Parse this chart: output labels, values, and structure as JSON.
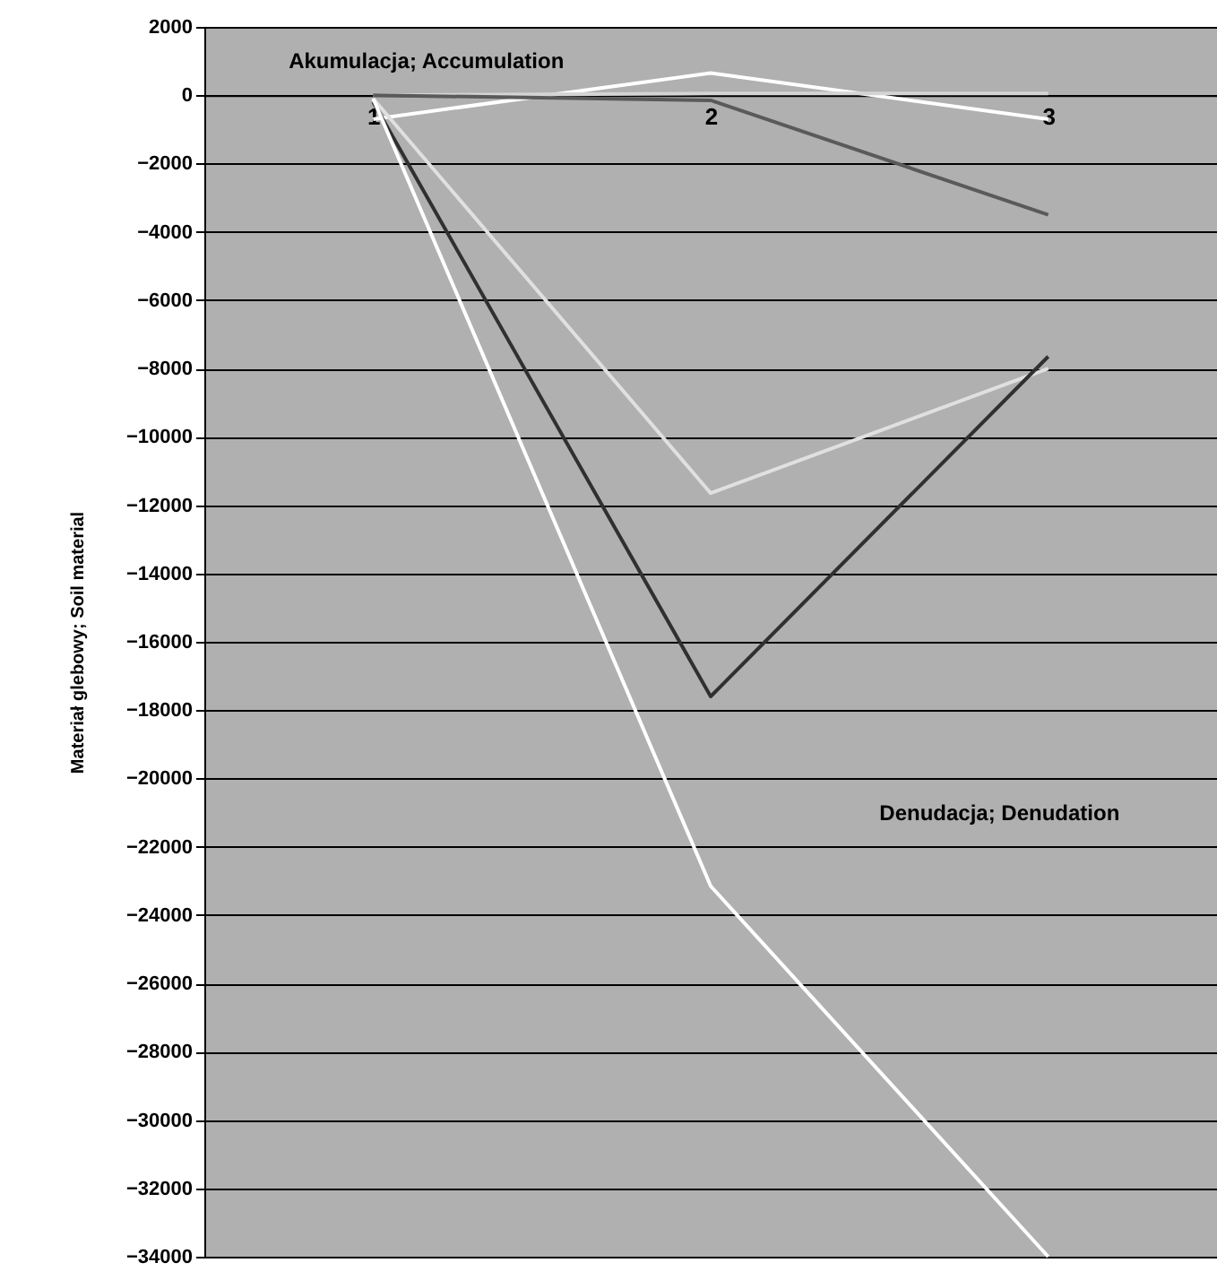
{
  "chart_data": {
    "type": "line",
    "categories": [
      "1",
      "2",
      "3"
    ],
    "ylabel": "Materiał glebowy; Soil material",
    "series": [
      {
        "color": "#ffffff",
        "values": [
          -700,
          650,
          -700
        ]
      },
      {
        "color": "#d4d4d4",
        "values": [
          0,
          50,
          50
        ]
      },
      {
        "color": "#5a5a5a",
        "values": [
          0,
          -150,
          -3500
        ]
      },
      {
        "color": "#e0e0e0",
        "values": [
          -100,
          -11650,
          -8000
        ]
      },
      {
        "color": "#303030",
        "values": [
          -200,
          -17600,
          -7650
        ]
      },
      {
        "color": "#ffffff",
        "values": [
          -100,
          -23150,
          -34000
        ]
      }
    ],
    "ylim": [
      -34000,
      2000
    ],
    "yticks": [
      2000,
      0,
      -2000,
      -4000,
      -6000,
      -8000,
      -10000,
      -12000,
      -14000,
      -16000,
      -18000,
      -20000,
      -22000,
      -24000,
      -26000,
      -28000,
      -30000,
      -32000,
      -34000
    ],
    "grid": "y",
    "marker": "none",
    "line_style": "solid",
    "annotations": [
      "Akumulacja; Accumulation",
      "Denudacja; Denudation"
    ]
  }
}
